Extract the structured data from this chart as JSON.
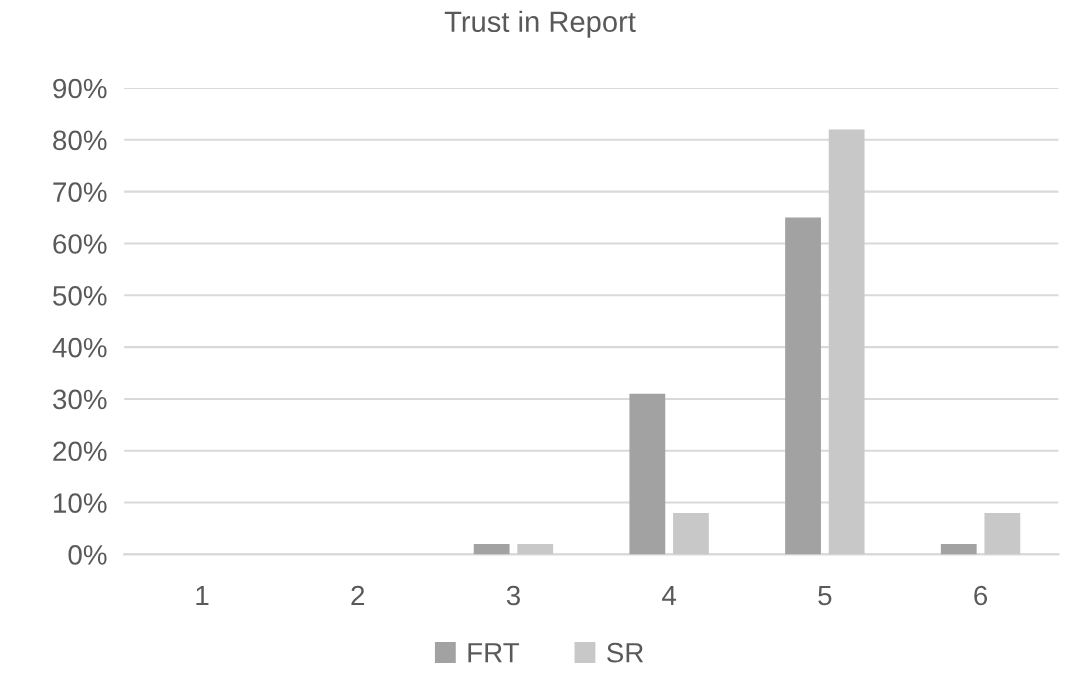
{
  "chart_data": {
    "type": "bar",
    "title": "Trust in Report",
    "categories": [
      "1",
      "2",
      "3",
      "4",
      "5",
      "6"
    ],
    "series": [
      {
        "name": "FRT",
        "color": "#a2a2a2",
        "values": [
          0,
          0,
          2,
          31,
          65,
          2
        ]
      },
      {
        "name": "SR",
        "color": "#c8c8c8",
        "values": [
          0,
          0,
          2,
          8,
          82,
          8
        ]
      }
    ],
    "ylim": [
      0,
      90
    ],
    "yticks": [
      {
        "value": 0,
        "label": "0%"
      },
      {
        "value": 10,
        "label": "10%"
      },
      {
        "value": 20,
        "label": "20%"
      },
      {
        "value": 30,
        "label": "30%"
      },
      {
        "value": 40,
        "label": "40%"
      },
      {
        "value": 50,
        "label": "50%"
      },
      {
        "value": 60,
        "label": "60%"
      },
      {
        "value": 70,
        "label": "70%"
      },
      {
        "value": 80,
        "label": "80%"
      },
      {
        "value": 90,
        "label": "90%"
      }
    ],
    "grid": "y",
    "legend": "bottom"
  }
}
